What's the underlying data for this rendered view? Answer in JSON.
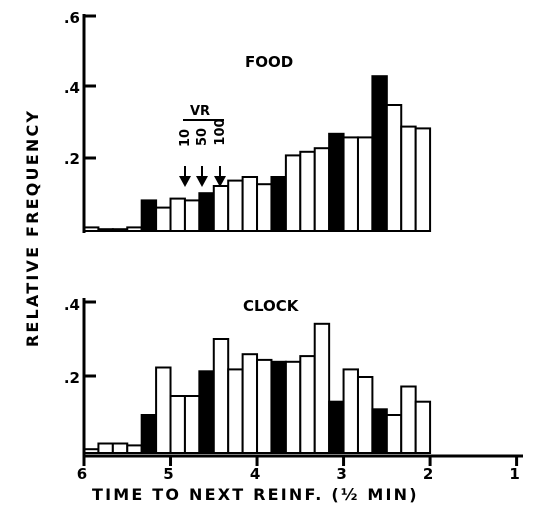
{
  "chart_data": {
    "type": "bar",
    "xlabel": "TIME TO NEXT REINF. (½ MIN)",
    "ylabel": "RELATIVE FREQUENCY",
    "x_ticks": [
      "6",
      "5",
      "4",
      "3",
      "2",
      "1"
    ],
    "bin_note": "12 bins per minute; leftmost bin is furthest from reinforcement",
    "panels": [
      {
        "title": "FOOD",
        "ylim": [
          0,
          0.6
        ],
        "y_ticks": [
          ".2",
          ".4",
          ".6"
        ],
        "filled": [
          false,
          false,
          false,
          false,
          true,
          false,
          false,
          false,
          true,
          false,
          false,
          false,
          false,
          true,
          false,
          false,
          false,
          true,
          false,
          false,
          true,
          false,
          false,
          false
        ],
        "values": [
          0.01,
          0.005,
          0.005,
          0.01,
          0.085,
          0.065,
          0.09,
          0.085,
          0.105,
          0.125,
          0.14,
          0.15,
          0.13,
          0.15,
          0.21,
          0.22,
          0.23,
          0.27,
          0.26,
          0.26,
          0.43,
          0.35,
          0.29,
          0.285
        ],
        "annotation": {
          "label": "VR",
          "markers": [
            "10",
            "50",
            "100"
          ]
        }
      },
      {
        "title": "CLOCK",
        "ylim": [
          0,
          0.4
        ],
        "y_ticks": [
          ".2",
          ".4"
        ],
        "filled": [
          false,
          false,
          false,
          false,
          true,
          false,
          false,
          false,
          true,
          false,
          false,
          false,
          false,
          true,
          false,
          false,
          false,
          true,
          false,
          false,
          true,
          false,
          false,
          false
        ],
        "values": [
          0.01,
          0.025,
          0.025,
          0.02,
          0.1,
          0.225,
          0.15,
          0.15,
          0.215,
          0.3,
          0.22,
          0.26,
          0.245,
          0.24,
          0.24,
          0.255,
          0.34,
          0.135,
          0.22,
          0.2,
          0.115,
          0.1,
          0.175,
          0.135
        ]
      }
    ]
  }
}
